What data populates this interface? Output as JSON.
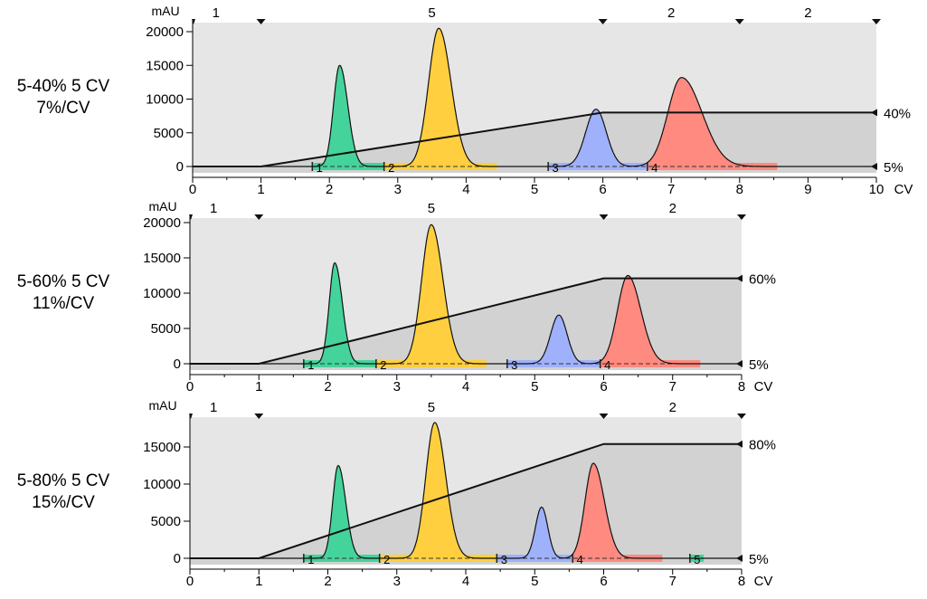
{
  "colors": {
    "background_light": "#e6e6e6",
    "background_dark": "#d2d2d2",
    "frac1": "#44d39b",
    "frac2": "#ffcf3f",
    "frac3": "#9fb1fb",
    "frac4": "#ff8a80",
    "frac5": "#44d39b",
    "trace": "#111111",
    "gradient": "#111111"
  },
  "panels": [
    {
      "label_line1": "5-40% 5 CV",
      "label_line2": "7%/CV"
    },
    {
      "label_line1": "5-60% 5 CV",
      "label_line2": "11%/CV"
    },
    {
      "label_line1": "5-80% 5 CV",
      "label_line2": "15%/CV"
    }
  ],
  "chart_data": [
    {
      "type": "area",
      "ylabel": "mAU",
      "xlabel": "CV",
      "xlim": [
        0,
        10
      ],
      "ylim": [
        0,
        21000
      ],
      "x_ticks": [
        0,
        1,
        2,
        3,
        4,
        5,
        6,
        7,
        8,
        9,
        10
      ],
      "x_tick_labels": [
        "0",
        "1",
        "2",
        "3",
        "4",
        "5",
        "6",
        "7",
        "8",
        "9",
        "10"
      ],
      "y_ticks": [
        0,
        5000,
        10000,
        15000,
        20000
      ],
      "y_tick_labels": [
        "0",
        "5000",
        "10000",
        "15000",
        "20000"
      ],
      "gradient": {
        "points": [
          [
            0,
            5
          ],
          [
            1,
            5
          ],
          [
            6,
            40
          ],
          [
            10,
            40
          ]
        ],
        "start_label": "5%",
        "end_label": "40%"
      },
      "segments": [
        {
          "label": "1",
          "start": 0,
          "end": 1
        },
        {
          "label": "5",
          "start": 1,
          "end": 6
        },
        {
          "label": "2",
          "start": 6,
          "end": 8
        },
        {
          "label": "2",
          "start": 8,
          "end": 10
        }
      ],
      "peaks": [
        {
          "center": 2.15,
          "height": 15000,
          "sigma_left": 0.09,
          "sigma_right": 0.12,
          "fraction": 1
        },
        {
          "center": 3.6,
          "height": 20500,
          "sigma_left": 0.15,
          "sigma_right": 0.18,
          "fraction": 2
        },
        {
          "center": 5.9,
          "height": 8500,
          "sigma_left": 0.15,
          "sigma_right": 0.15,
          "fraction": 3
        },
        {
          "center": 7.15,
          "height": 13200,
          "sigma_left": 0.2,
          "sigma_right": 0.3,
          "fraction": 4
        }
      ],
      "fractions": [
        {
          "label": "1",
          "start": 1.75,
          "end": 2.8,
          "color": "#44d39b"
        },
        {
          "label": "2",
          "start": 2.8,
          "end": 4.45,
          "color": "#ffcf3f"
        },
        {
          "label": "3",
          "start": 5.2,
          "end": 6.65,
          "color": "#9fb1fb"
        },
        {
          "label": "4",
          "start": 6.65,
          "end": 8.55,
          "color": "#ff8a80"
        }
      ]
    },
    {
      "type": "area",
      "ylabel": "mAU",
      "xlabel": "CV",
      "xlim": [
        0,
        8
      ],
      "ylim": [
        0,
        21000
      ],
      "x_ticks": [
        0,
        1,
        2,
        3,
        4,
        5,
        6,
        7,
        8
      ],
      "x_tick_labels": [
        "0",
        "1",
        "2",
        "3",
        "4",
        "5",
        "6",
        "7",
        "8"
      ],
      "y_ticks": [
        0,
        5000,
        10000,
        15000,
        20000
      ],
      "y_tick_labels": [
        "0",
        "5000",
        "10000",
        "15000",
        "20000"
      ],
      "gradient": {
        "points": [
          [
            0,
            5
          ],
          [
            1,
            5
          ],
          [
            6,
            60
          ],
          [
            8,
            60
          ]
        ],
        "start_label": "5%",
        "end_label": "60%"
      },
      "segments": [
        {
          "label": "1",
          "start": 0,
          "end": 1
        },
        {
          "label": "5",
          "start": 1,
          "end": 6
        },
        {
          "label": "2",
          "start": 6,
          "end": 8
        }
      ],
      "peaks": [
        {
          "center": 2.1,
          "height": 14300,
          "sigma_left": 0.08,
          "sigma_right": 0.11,
          "fraction": 1
        },
        {
          "center": 3.5,
          "height": 19700,
          "sigma_left": 0.14,
          "sigma_right": 0.17,
          "fraction": 2
        },
        {
          "center": 5.35,
          "height": 6900,
          "sigma_left": 0.12,
          "sigma_right": 0.12,
          "fraction": 3
        },
        {
          "center": 6.35,
          "height": 12500,
          "sigma_left": 0.15,
          "sigma_right": 0.19,
          "fraction": 4
        }
      ],
      "fractions": [
        {
          "label": "1",
          "start": 1.65,
          "end": 2.7,
          "color": "#44d39b"
        },
        {
          "label": "2",
          "start": 2.7,
          "end": 4.3,
          "color": "#ffcf3f"
        },
        {
          "label": "3",
          "start": 4.6,
          "end": 5.95,
          "color": "#9fb1fb"
        },
        {
          "label": "4",
          "start": 5.95,
          "end": 7.4,
          "color": "#ff8a80"
        }
      ]
    },
    {
      "type": "area",
      "ylabel": "mAU",
      "xlabel": "CV",
      "xlim": [
        0,
        8
      ],
      "ylim": [
        0,
        19500
      ],
      "x_ticks": [
        0,
        1,
        2,
        3,
        4,
        5,
        6,
        7,
        8
      ],
      "x_tick_labels": [
        "0",
        "1",
        "2",
        "3",
        "4",
        "5",
        "6",
        "7",
        "8"
      ],
      "y_ticks": [
        0,
        5000,
        10000,
        15000
      ],
      "y_tick_labels": [
        "0",
        "5000",
        "10000",
        "15000"
      ],
      "gradient": {
        "points": [
          [
            0,
            5
          ],
          [
            1,
            5
          ],
          [
            6,
            80
          ],
          [
            8,
            80
          ]
        ],
        "start_label": "5%",
        "end_label": "80%"
      },
      "segments": [
        {
          "label": "1",
          "start": 0,
          "end": 1
        },
        {
          "label": "5",
          "start": 1,
          "end": 6
        },
        {
          "label": "2",
          "start": 6,
          "end": 8
        }
      ],
      "peaks": [
        {
          "center": 2.15,
          "height": 12500,
          "sigma_left": 0.08,
          "sigma_right": 0.11,
          "fraction": 1
        },
        {
          "center": 3.55,
          "height": 18300,
          "sigma_left": 0.13,
          "sigma_right": 0.16,
          "fraction": 2
        },
        {
          "center": 5.1,
          "height": 6900,
          "sigma_left": 0.09,
          "sigma_right": 0.09,
          "fraction": 3
        },
        {
          "center": 5.85,
          "height": 12800,
          "sigma_left": 0.12,
          "sigma_right": 0.16,
          "fraction": 4
        }
      ],
      "fractions": [
        {
          "label": "1",
          "start": 1.65,
          "end": 2.75,
          "color": "#44d39b"
        },
        {
          "label": "2",
          "start": 2.75,
          "end": 4.45,
          "color": "#ffcf3f"
        },
        {
          "label": "3",
          "start": 4.45,
          "end": 5.55,
          "color": "#9fb1fb"
        },
        {
          "label": "4",
          "start": 5.55,
          "end": 6.85,
          "color": "#ff8a80"
        },
        {
          "label": "5",
          "start": 7.25,
          "end": 7.45,
          "color": "#44d39b"
        }
      ]
    }
  ]
}
